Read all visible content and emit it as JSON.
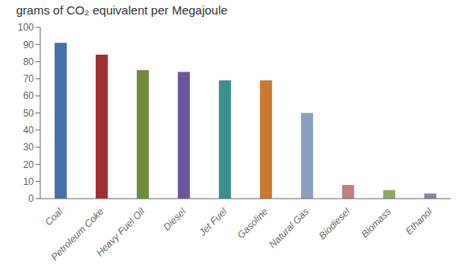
{
  "chart_data": {
    "type": "bar",
    "title": "grams of CO₂ equivalent per Megajoule",
    "categories": [
      "Coal",
      "Petroleum Coke",
      "Heavy Fuel Oil",
      "Diesel",
      "Jet Fuel",
      "Gasoline",
      "Natural Gas",
      "Biodiesel",
      "Biomass",
      "Ethanol"
    ],
    "values": [
      91,
      84,
      75,
      74,
      69,
      69,
      50,
      8,
      5,
      3
    ],
    "colors": [
      "#4472a8",
      "#a03030",
      "#6e8c3a",
      "#6b57a0",
      "#3a9090",
      "#cc7830",
      "#8a9fc0",
      "#c08080",
      "#8aaa60",
      "#9080a8"
    ],
    "ylim": [
      0,
      100
    ],
    "yticks": [
      0,
      10,
      20,
      30,
      40,
      50,
      60,
      70,
      80,
      90,
      100
    ],
    "grid": false
  }
}
